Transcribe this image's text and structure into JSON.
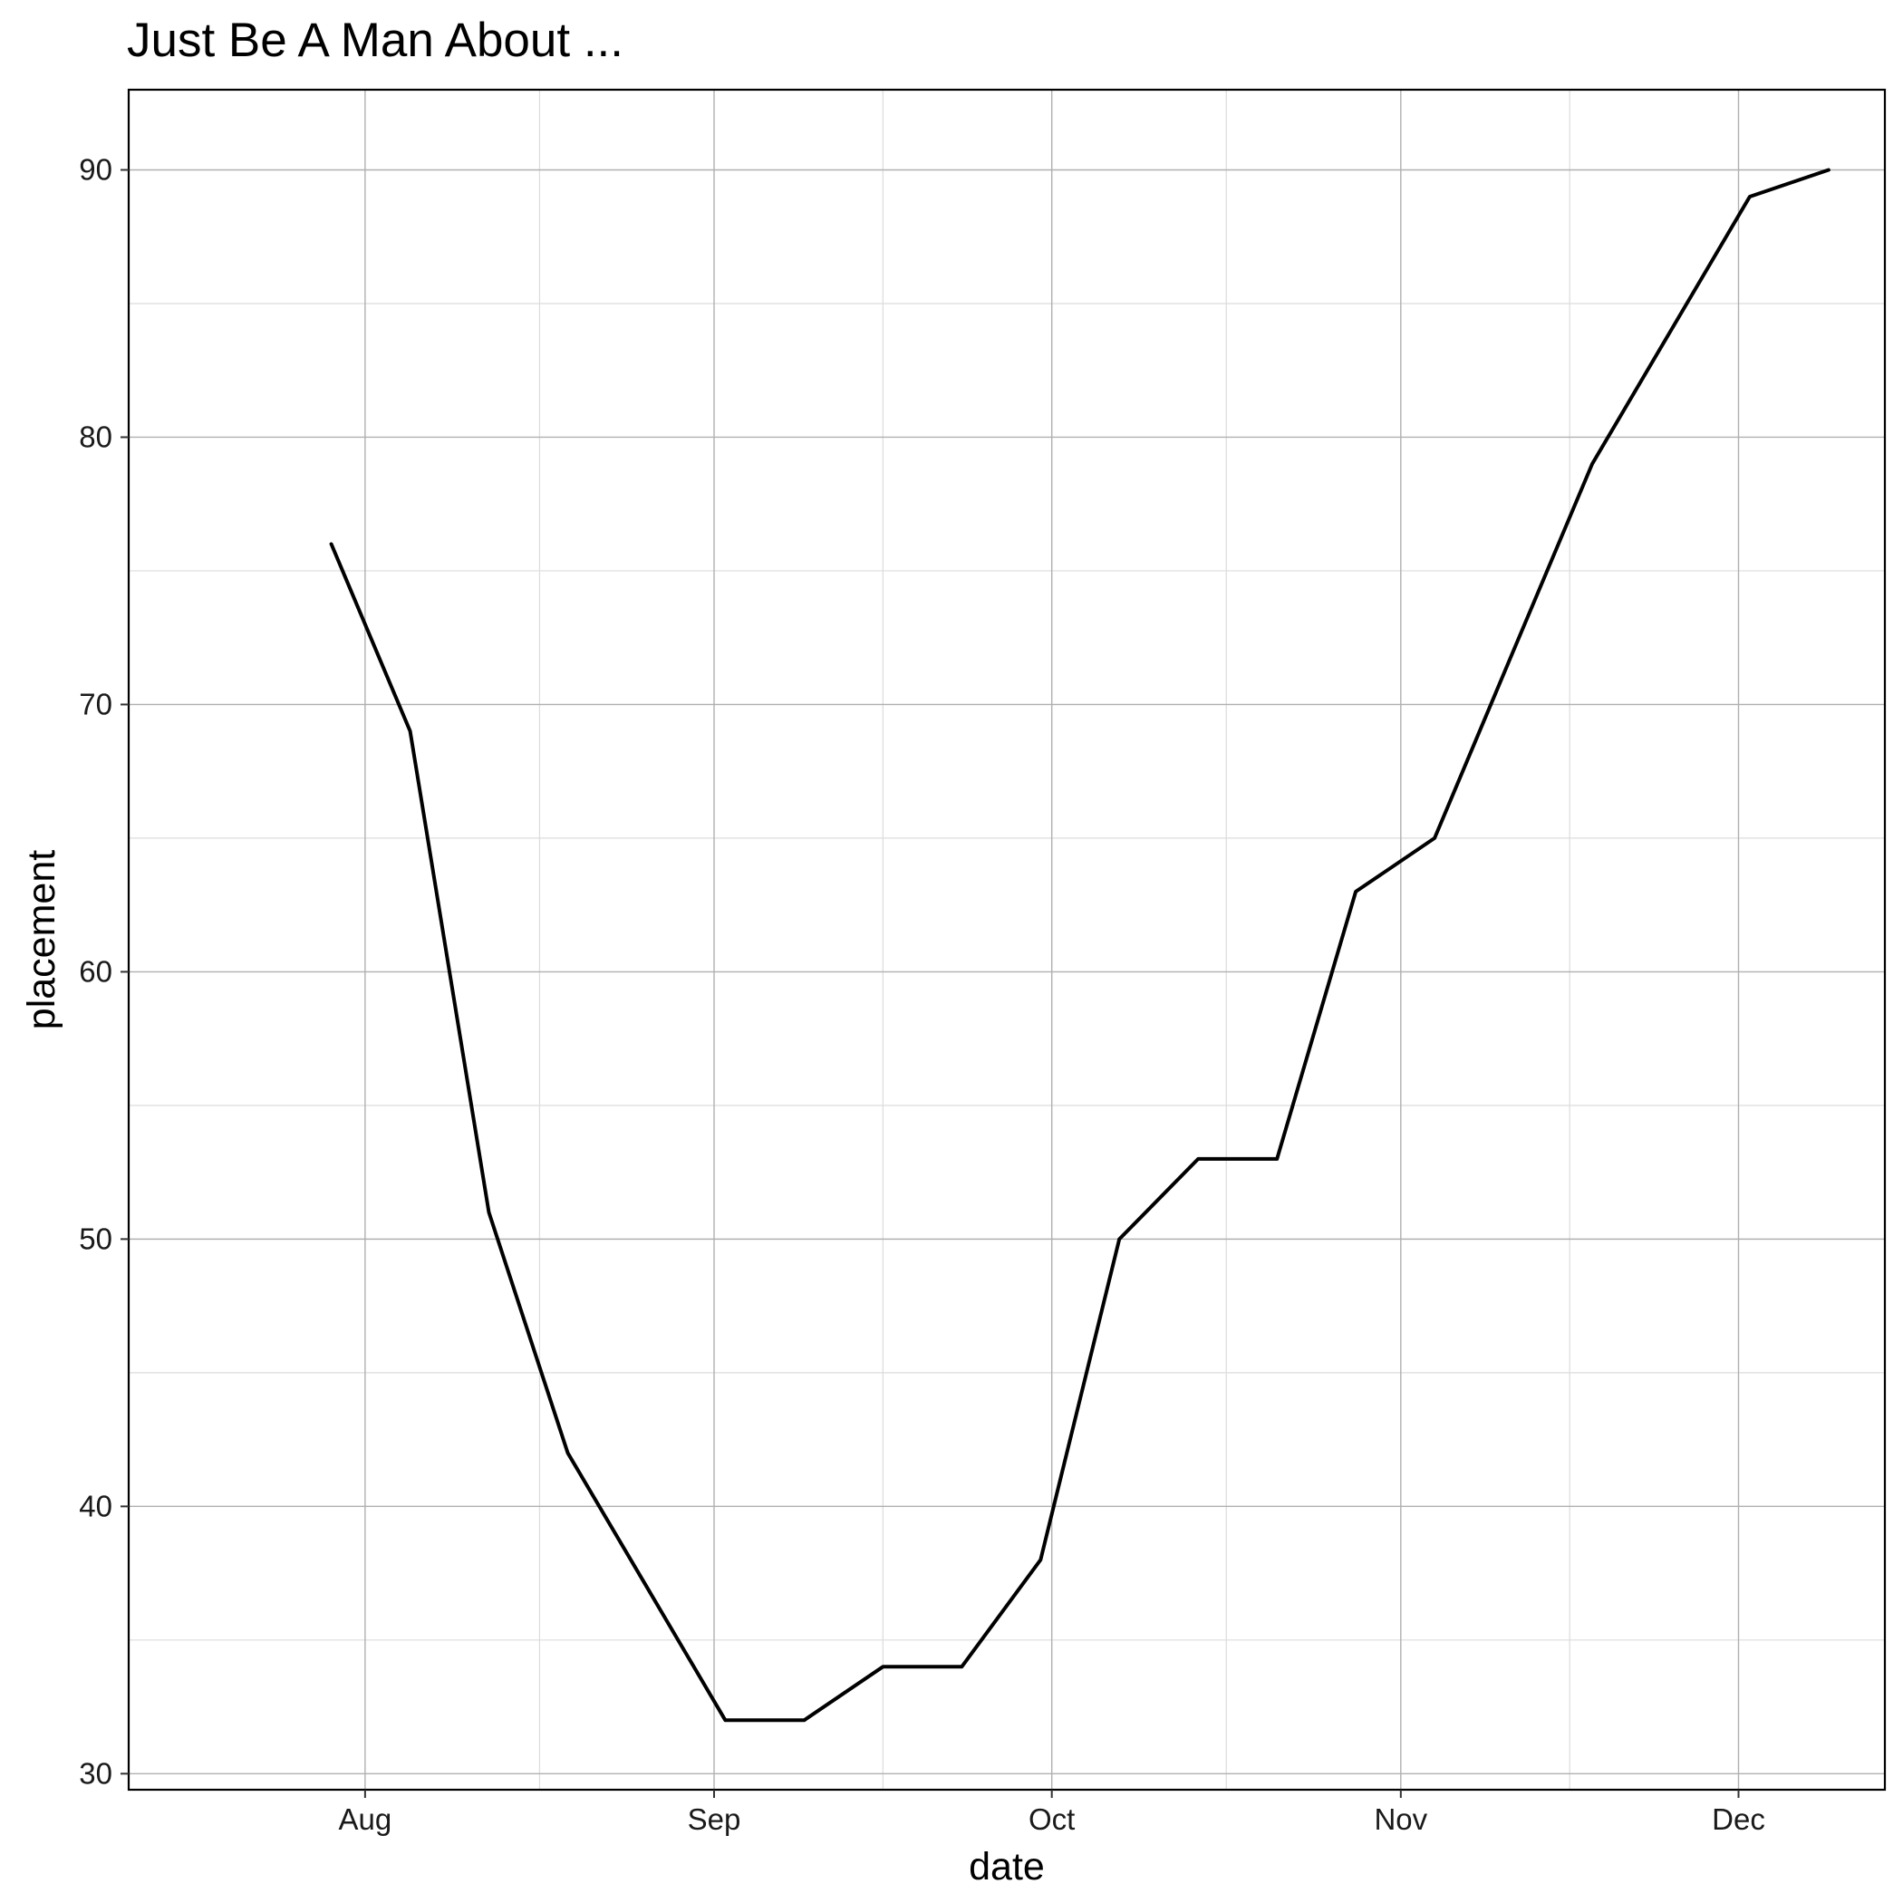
{
  "chart_data": {
    "type": "line",
    "title": "Just Be A Man About ...",
    "xlabel": "date",
    "ylabel": "placement",
    "x_ticks": [
      "Aug",
      "Sep",
      "Oct",
      "Nov",
      "Dec"
    ],
    "x_tick_dates": [
      "2023-08-01",
      "2023-09-01",
      "2023-10-01",
      "2023-11-01",
      "2023-12-01"
    ],
    "xlim": [
      "2023-07-11",
      "2023-12-14"
    ],
    "y_ticks": [
      30,
      40,
      50,
      60,
      70,
      80,
      90
    ],
    "ylim": [
      29.4,
      93
    ],
    "grid": true,
    "series": [
      {
        "color": "#000000",
        "points": [
          {
            "x": "2023-07-29",
            "y": 76
          },
          {
            "x": "2023-08-05",
            "y": 69
          },
          {
            "x": "2023-08-12",
            "y": 51
          },
          {
            "x": "2023-08-19",
            "y": 42
          },
          {
            "x": "2023-08-26",
            "y": 37
          },
          {
            "x": "2023-09-02",
            "y": 32
          },
          {
            "x": "2023-09-09",
            "y": 32
          },
          {
            "x": "2023-09-16",
            "y": 34
          },
          {
            "x": "2023-09-23",
            "y": 34
          },
          {
            "x": "2023-09-30",
            "y": 38
          },
          {
            "x": "2023-10-07",
            "y": 50
          },
          {
            "x": "2023-10-14",
            "y": 53
          },
          {
            "x": "2023-10-21",
            "y": 53
          },
          {
            "x": "2023-10-28",
            "y": 63
          },
          {
            "x": "2023-11-04",
            "y": 65
          },
          {
            "x": "2023-11-11",
            "y": 72
          },
          {
            "x": "2023-11-18",
            "y": 79
          },
          {
            "x": "2023-11-25",
            "y": 84
          },
          {
            "x": "2023-12-02",
            "y": 89
          },
          {
            "x": "2023-12-09",
            "y": 90
          }
        ]
      }
    ]
  }
}
